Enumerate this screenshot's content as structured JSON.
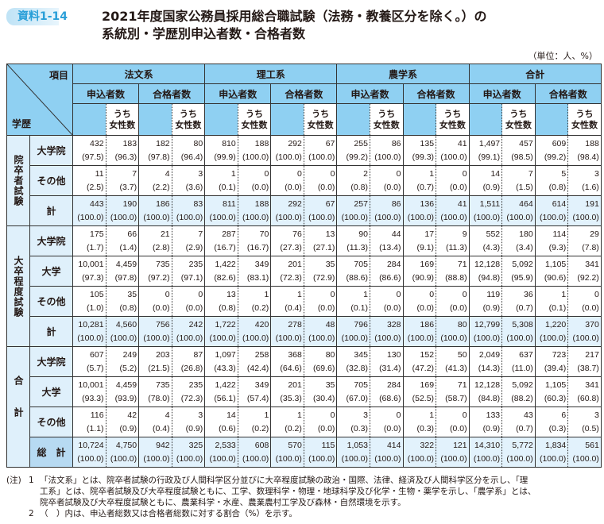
{
  "badge": "資料1-14",
  "title_line1": "2021年度国家公務員採用総合職試験（法務・教養区分を除く。）の",
  "title_line2": "系統別・学歴別申込者数・合格者数",
  "unit": "（単位：人、%）",
  "header": {
    "item": "項目",
    "education": "学歴",
    "categories": [
      "法文系",
      "理工系",
      "農学系",
      "合計"
    ],
    "applicants": "申込者数",
    "passers": "合格者数",
    "women_line1": "うち",
    "women_line2": "女性数"
  },
  "groups": [
    {
      "label": "院卒者試験",
      "rows": [
        {
          "label": "大学院",
          "values": [
            "432",
            "183",
            "182",
            "80",
            "810",
            "188",
            "292",
            "67",
            "255",
            "86",
            "135",
            "41",
            "1,497",
            "457",
            "609",
            "188"
          ],
          "pcts": [
            "(97.5)",
            "(96.3)",
            "(97.8)",
            "(96.4)",
            "(99.9)",
            "(100.0)",
            "(100.0)",
            "(100.0)",
            "(99.2)",
            "(100.0)",
            "(99.3)",
            "(100.0)",
            "(99.1)",
            "(98.5)",
            "(99.2)",
            "(98.4)"
          ]
        },
        {
          "label": "その他",
          "values": [
            "11",
            "7",
            "4",
            "3",
            "1",
            "0",
            "0",
            "0",
            "2",
            "0",
            "1",
            "0",
            "14",
            "7",
            "5",
            "3"
          ],
          "pcts": [
            "(2.5)",
            "(3.7)",
            "(2.2)",
            "(3.6)",
            "(0.1)",
            "(0.0)",
            "(0.0)",
            "(0.0)",
            "(0.8)",
            "(0.0)",
            "(0.7)",
            "(0.0)",
            "(0.9)",
            "(1.5)",
            "(0.8)",
            "(1.6)"
          ]
        },
        {
          "label": "計",
          "total": true,
          "values": [
            "443",
            "190",
            "186",
            "83",
            "811",
            "188",
            "292",
            "67",
            "257",
            "86",
            "136",
            "41",
            "1,511",
            "464",
            "614",
            "191"
          ],
          "pcts": [
            "(100.0)",
            "(100.0)",
            "(100.0)",
            "(100.0)",
            "(100.0)",
            "(100.0)",
            "(100.0)",
            "(100.0)",
            "(100.0)",
            "(100.0)",
            "(100.0)",
            "(100.0)",
            "(100.0)",
            "(100.0)",
            "(100.0)",
            "(100.0)"
          ]
        }
      ]
    },
    {
      "label": "大卒程度試験",
      "rows": [
        {
          "label": "大学院",
          "values": [
            "175",
            "66",
            "21",
            "7",
            "287",
            "70",
            "76",
            "13",
            "90",
            "44",
            "17",
            "9",
            "552",
            "180",
            "114",
            "29"
          ],
          "pcts": [
            "(1.7)",
            "(1.4)",
            "(2.8)",
            "(2.9)",
            "(16.7)",
            "(16.7)",
            "(27.3)",
            "(27.1)",
            "(11.3)",
            "(13.4)",
            "(9.1)",
            "(11.3)",
            "(4.3)",
            "(3.4)",
            "(9.3)",
            "(7.8)"
          ]
        },
        {
          "label": "大学",
          "values": [
            "10,001",
            "4,459",
            "735",
            "235",
            "1,422",
            "349",
            "201",
            "35",
            "705",
            "284",
            "169",
            "71",
            "12,128",
            "5,092",
            "1,105",
            "341"
          ],
          "pcts": [
            "(97.3)",
            "(97.8)",
            "(97.2)",
            "(97.1)",
            "(82.6)",
            "(83.1)",
            "(72.3)",
            "(72.9)",
            "(88.6)",
            "(86.6)",
            "(90.9)",
            "(88.8)",
            "(94.8)",
            "(95.9)",
            "(90.6)",
            "(92.2)"
          ]
        },
        {
          "label": "その他",
          "values": [
            "105",
            "35",
            "0",
            "0",
            "13",
            "1",
            "1",
            "0",
            "1",
            "0",
            "0",
            "0",
            "119",
            "36",
            "1",
            "0"
          ],
          "pcts": [
            "(1.0)",
            "(0.8)",
            "(0.0)",
            "(0.0)",
            "(0.8)",
            "(0.2)",
            "(0.4)",
            "(0.0)",
            "(0.1)",
            "(0.0)",
            "(0.0)",
            "(0.0)",
            "(0.9)",
            "(0.7)",
            "(0.1)",
            "(0.0)"
          ]
        },
        {
          "label": "計",
          "total": true,
          "values": [
            "10,281",
            "4,560",
            "756",
            "242",
            "1,722",
            "420",
            "278",
            "48",
            "796",
            "328",
            "186",
            "80",
            "12,799",
            "5,308",
            "1,220",
            "370"
          ],
          "pcts": [
            "(100.0)",
            "(100.0)",
            "(100.0)",
            "(100.0)",
            "(100.0)",
            "(100.0)",
            "(100.0)",
            "(100.0)",
            "(100.0)",
            "(100.0)",
            "(100.0)",
            "(100.0)",
            "(100.0)",
            "(100.0)",
            "(100.0)",
            "(100.0)"
          ]
        }
      ]
    },
    {
      "label": "合計",
      "spaced": true,
      "rows": [
        {
          "label": "大学院",
          "values": [
            "607",
            "249",
            "203",
            "87",
            "1,097",
            "258",
            "368",
            "80",
            "345",
            "130",
            "152",
            "50",
            "2,049",
            "637",
            "723",
            "217"
          ],
          "pcts": [
            "(5.7)",
            "(5.2)",
            "(21.5)",
            "(26.8)",
            "(43.3)",
            "(42.4)",
            "(64.6)",
            "(69.6)",
            "(32.8)",
            "(31.4)",
            "(47.2)",
            "(41.3)",
            "(14.3)",
            "(11.0)",
            "(39.4)",
            "(38.7)"
          ]
        },
        {
          "label": "大学",
          "values": [
            "10,001",
            "4,459",
            "735",
            "235",
            "1,422",
            "349",
            "201",
            "35",
            "705",
            "284",
            "169",
            "71",
            "12,128",
            "5,092",
            "1,105",
            "341"
          ],
          "pcts": [
            "(93.3)",
            "(93.9)",
            "(78.0)",
            "(72.3)",
            "(56.1)",
            "(57.4)",
            "(35.3)",
            "(30.4)",
            "(67.0)",
            "(68.6)",
            "(52.5)",
            "(58.7)",
            "(84.8)",
            "(88.2)",
            "(60.3)",
            "(60.8)"
          ]
        },
        {
          "label": "その他",
          "values": [
            "116",
            "42",
            "4",
            "3",
            "14",
            "1",
            "1",
            "0",
            "3",
            "0",
            "1",
            "0",
            "133",
            "43",
            "6",
            "3"
          ],
          "pcts": [
            "(1.1)",
            "(0.9)",
            "(0.4)",
            "(0.9)",
            "(0.6)",
            "(0.2)",
            "(0.2)",
            "(0.0)",
            "(0.3)",
            "(0.0)",
            "(0.3)",
            "(0.0)",
            "(0.9)",
            "(0.7)",
            "(0.3)",
            "(0.5)"
          ]
        },
        {
          "label": "総　計",
          "total": true,
          "grand": true,
          "values": [
            "10,724",
            "4,750",
            "942",
            "325",
            "2,533",
            "608",
            "570",
            "115",
            "1,053",
            "414",
            "322",
            "121",
            "14,310",
            "5,772",
            "1,834",
            "561"
          ],
          "pcts": [
            "(100.0)",
            "(100.0)",
            "(100.0)",
            "(100.0)",
            "(100.0)",
            "(100.0)",
            "(100.0)",
            "(100.0)",
            "(100.0)",
            "(100.0)",
            "(100.0)",
            "(100.0)",
            "(100.0)",
            "(100.0)",
            "(100.0)",
            "(100.0)"
          ]
        }
      ]
    }
  ],
  "notes": {
    "prefix": "(注)",
    "n1": "1",
    "note1_line1": "「法文系」とは、院卒者試験の行政及び人間科学区分並びに大卒程度試験の政治・国際、法律、経済及び人間科学区分を示し、「理",
    "note1_line2": "工系」とは、院卒者試験及び大卒程度試験ともに、工学、数理科学・物理・地球科学及び化学・生物・薬学を示し、「農学系」とは、",
    "note1_line3": "院卒者試験及び大卒程度試験ともに、農業科学・水産、農業農村工学及び森林・自然環境を示す。",
    "n2": "2",
    "note2": "（　）内は、申込者総数又は合格者総数に対する割合（%）を示す。"
  },
  "colors": {
    "header": "#8fd0f2",
    "label": "#dff0fb",
    "total_row": "#e2f2fc",
    "grand_label": "#b7daf2",
    "badge_text": "#2a9fd8"
  }
}
